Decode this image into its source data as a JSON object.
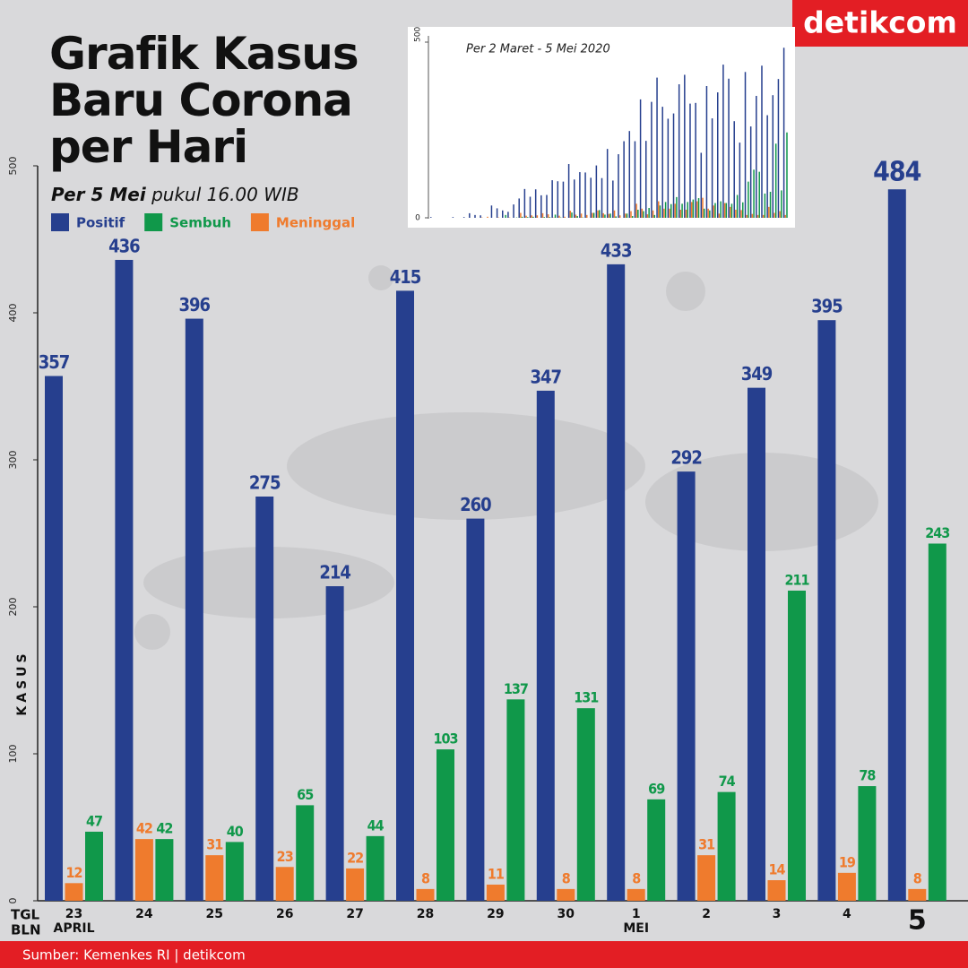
{
  "chart_data": {
    "type": "bar",
    "title": "Grafik Kasus Baru Corona per Hari",
    "subtitle_bold": "Per 5 Mei",
    "subtitle": "pukul 16.00 WIB",
    "logo": "detikcom",
    "source": "Sumber: Kemenkes RI | detikcom",
    "ylabel": "KASUS",
    "xlabel_day": "TGL",
    "xlabel_month": "BLN",
    "categories": [
      "23",
      "24",
      "25",
      "26",
      "27",
      "28",
      "29",
      "30",
      "1",
      "2",
      "3",
      "4",
      "5"
    ],
    "month_labels": [
      "APRIL",
      null,
      null,
      null,
      null,
      null,
      null,
      null,
      "MEI",
      null,
      null,
      null,
      null
    ],
    "ylim": [
      0,
      500
    ],
    "yticks": [
      0,
      100,
      200,
      300,
      400,
      500
    ],
    "highlight_last": true,
    "series": [
      {
        "name": "Positif",
        "color": "#263f8e",
        "values": [
          357,
          436,
          396,
          275,
          214,
          415,
          260,
          347,
          433,
          292,
          349,
          395,
          484
        ]
      },
      {
        "name": "Sembuh",
        "color": "#10984a",
        "values": [
          47,
          42,
          40,
          65,
          44,
          103,
          137,
          131,
          69,
          74,
          211,
          78,
          243
        ]
      },
      {
        "name": "Meninggal",
        "color": "#ef7b2d",
        "values": [
          12,
          42,
          31,
          23,
          22,
          8,
          11,
          8,
          8,
          31,
          14,
          19,
          8
        ]
      }
    ],
    "inset": {
      "type": "bar",
      "title": "Per 2 Maret - 5 Mei 2020",
      "ylim": [
        0,
        500
      ],
      "yticks": [
        0,
        500
      ],
      "series": [
        {
          "name": "Positif",
          "color": "#263f8e",
          "values": [
            2,
            0,
            0,
            0,
            2,
            0,
            2,
            13,
            8,
            7,
            0,
            35,
            27,
            21,
            17,
            38,
            55,
            82,
            60,
            81,
            64,
            65,
            107,
            104,
            103,
            153,
            109,
            130,
            129,
            114,
            149,
            113,
            196,
            106,
            181,
            218,
            247,
            218,
            337,
            219,
            330,
            399,
            316,
            282,
            297,
            380,
            407,
            325,
            327,
            185,
            375,
            283,
            357,
            436,
            396,
            275,
            214,
            415,
            260,
            347,
            433,
            292,
            349,
            395,
            484
          ]
        },
        {
          "name": "Sembuh",
          "color": "#10984a",
          "values": [
            0,
            0,
            0,
            0,
            0,
            0,
            0,
            0,
            0,
            0,
            0,
            0,
            0,
            8,
            0,
            1,
            3,
            2,
            3,
            0,
            2,
            2,
            9,
            1,
            0,
            15,
            5,
            1,
            0,
            14,
            22,
            9,
            12,
            4,
            0,
            12,
            5,
            23,
            19,
            28,
            8,
            35,
            45,
            39,
            59,
            40,
            45,
            52,
            56,
            26,
            21,
            42,
            47,
            42,
            40,
            65,
            44,
            103,
            137,
            131,
            69,
            74,
            211,
            78,
            243
          ]
        },
        {
          "name": "Meninggal",
          "color": "#ef7b2d",
          "values": [
            0,
            0,
            0,
            0,
            0,
            0,
            0,
            0,
            0,
            1,
            3,
            0,
            1,
            0,
            1,
            0,
            14,
            6,
            7,
            7,
            13,
            10,
            1,
            6,
            3,
            20,
            9,
            12,
            8,
            14,
            21,
            13,
            11,
            21,
            7,
            12,
            19,
            40,
            26,
            10,
            21,
            47,
            26,
            26,
            40,
            23,
            23,
            45,
            47,
            57,
            26,
            35,
            12,
            42,
            31,
            23,
            22,
            8,
            11,
            8,
            8,
            31,
            14,
            19,
            8
          ]
        }
      ]
    }
  }
}
